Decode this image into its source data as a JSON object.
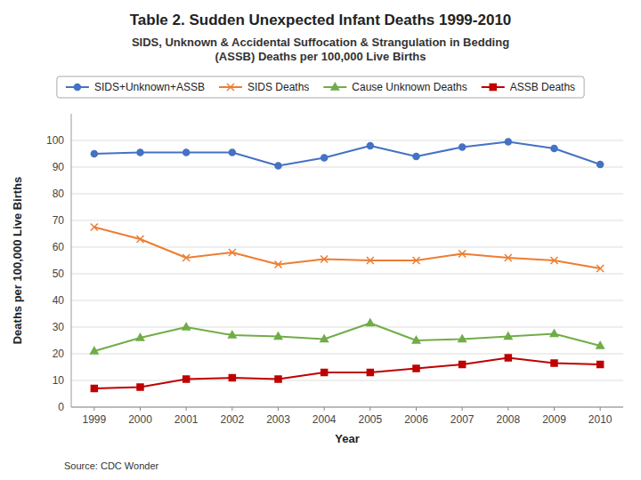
{
  "chart_data": {
    "type": "line",
    "title": "Table 2. Sudden Unexpected Infant Deaths 1999-2010",
    "subtitle": "SIDS, Unknown & Accidental Suffocation & Strangulation in Bedding\n(ASSB) Deaths per 100,000 Live Births",
    "x_label": "Year",
    "y_label": "Deaths per 100,000 Live Births",
    "source": "Source: CDC Wonder",
    "x": [
      1999,
      2000,
      2001,
      2002,
      2003,
      2004,
      2005,
      2006,
      2007,
      2008,
      2009,
      2010
    ],
    "series": [
      {
        "name": "SIDS+Unknown+ASSB",
        "color": "#4472C4",
        "marker": "circle",
        "line_style": "solid",
        "values": [
          95,
          95.5,
          95.5,
          95.5,
          90.5,
          93.5,
          98,
          94,
          97.5,
          99.5,
          97,
          91
        ]
      },
      {
        "name": "SIDS Deaths",
        "color": "#ED7D31",
        "marker": "x",
        "line_style": "solid",
        "values": [
          67.5,
          63,
          56,
          58,
          53.5,
          55.5,
          55,
          55,
          57.5,
          56,
          55,
          52
        ]
      },
      {
        "name": "Cause Unknown Deaths",
        "color": "#70AD47",
        "marker": "triangle",
        "line_style": "solid",
        "values": [
          21,
          26,
          30,
          27,
          26.5,
          25.5,
          31.5,
          25,
          25.5,
          26.5,
          27.5,
          23
        ]
      },
      {
        "name": "ASSB Deaths",
        "color": "#C00000",
        "marker": "square",
        "line_style": "solid",
        "values": [
          7,
          7.5,
          10.5,
          11,
          10.5,
          13,
          13,
          14.5,
          16,
          18.5,
          16.5,
          16
        ]
      }
    ],
    "xlim": [
      1998.5,
      2010.5
    ],
    "xticks": [
      1999,
      2000,
      2001,
      2002,
      2003,
      2004,
      2005,
      2006,
      2007,
      2008,
      2009,
      2010
    ],
    "ylim": [
      0,
      110
    ],
    "yticks": [
      0,
      10,
      20,
      30,
      40,
      50,
      60,
      70,
      80,
      90,
      100
    ],
    "grid": true,
    "legend": "top"
  }
}
